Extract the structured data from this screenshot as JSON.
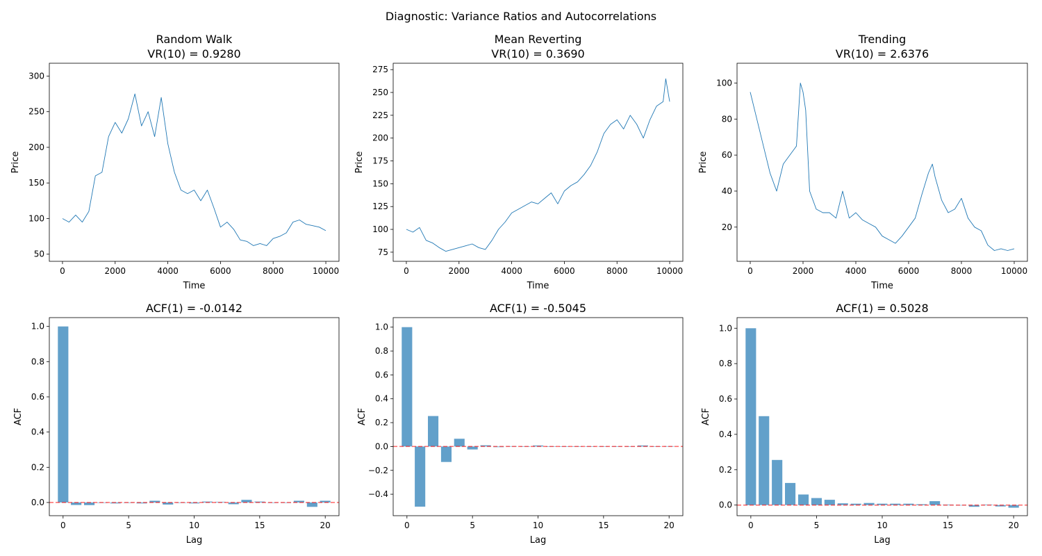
{
  "figure": {
    "suptitle": "Diagnostic: Variance Ratios and Autocorrelations"
  },
  "colors": {
    "series": "#1f77b4",
    "bar": "#1f77b4",
    "bar_opacity": 0.7,
    "zero_line": "#ff0000",
    "axis": "#000000"
  },
  "chart_data": [
    {
      "type": "line",
      "title_line1": "Random Walk",
      "title_line2": "VR(10) = 0.9280",
      "xlabel": "Time",
      "ylabel": "Price",
      "xlim": [
        -500,
        10500
      ],
      "ylim": [
        40,
        318
      ],
      "xticks": [
        0,
        2000,
        4000,
        6000,
        8000,
        10000
      ],
      "yticks": [
        50,
        100,
        150,
        200,
        250,
        300
      ],
      "x": [
        0,
        250,
        500,
        750,
        1000,
        1250,
        1500,
        1750,
        2000,
        2250,
        2500,
        2750,
        3000,
        3250,
        3500,
        3750,
        4000,
        4250,
        4500,
        4750,
        5000,
        5250,
        5500,
        5750,
        6000,
        6250,
        6500,
        6750,
        7000,
        7250,
        7500,
        7750,
        8000,
        8250,
        8500,
        8750,
        9000,
        9250,
        9500,
        9750,
        10000
      ],
      "y": [
        100,
        95,
        105,
        95,
        110,
        160,
        165,
        215,
        235,
        220,
        240,
        275,
        230,
        250,
        215,
        270,
        205,
        165,
        140,
        135,
        140,
        125,
        140,
        115,
        88,
        95,
        85,
        70,
        68,
        62,
        65,
        62,
        72,
        75,
        80,
        95,
        98,
        92,
        90,
        88,
        83
      ]
    },
    {
      "type": "line",
      "title_line1": "Mean Reverting",
      "title_line2": "VR(10) = 0.3690",
      "xlabel": "Time",
      "ylabel": "Price",
      "xlim": [
        -500,
        10500
      ],
      "ylim": [
        65,
        282
      ],
      "xticks": [
        0,
        2000,
        4000,
        6000,
        8000,
        10000
      ],
      "yticks": [
        75,
        100,
        125,
        150,
        175,
        200,
        225,
        250,
        275
      ],
      "x": [
        0,
        250,
        500,
        750,
        1000,
        1250,
        1500,
        1750,
        2000,
        2250,
        2500,
        2750,
        3000,
        3250,
        3500,
        3750,
        4000,
        4250,
        4500,
        4750,
        5000,
        5250,
        5500,
        5750,
        6000,
        6250,
        6500,
        6750,
        7000,
        7250,
        7500,
        7750,
        8000,
        8250,
        8500,
        8750,
        9000,
        9250,
        9500,
        9750,
        9850,
        10000
      ],
      "y": [
        100,
        97,
        102,
        88,
        85,
        80,
        76,
        78,
        80,
        82,
        84,
        80,
        78,
        88,
        100,
        108,
        118,
        122,
        126,
        130,
        128,
        134,
        140,
        128,
        142,
        148,
        152,
        160,
        170,
        185,
        205,
        215,
        220,
        210,
        225,
        215,
        200,
        220,
        235,
        240,
        265,
        240
      ]
    },
    {
      "type": "line",
      "title_line1": "Trending",
      "title_line2": "VR(10) = 2.6376",
      "xlabel": "Time",
      "ylabel": "Price",
      "xlim": [
        -500,
        10500
      ],
      "ylim": [
        1,
        111
      ],
      "xticks": [
        0,
        2000,
        4000,
        6000,
        8000,
        10000
      ],
      "yticks": [
        20,
        40,
        60,
        80,
        100
      ],
      "x": [
        0,
        250,
        500,
        750,
        1000,
        1250,
        1500,
        1750,
        1900,
        2000,
        2100,
        2250,
        2500,
        2750,
        3000,
        3250,
        3500,
        3750,
        4000,
        4250,
        4500,
        4750,
        5000,
        5250,
        5500,
        5750,
        6000,
        6250,
        6500,
        6750,
        6900,
        7000,
        7250,
        7500,
        7750,
        8000,
        8250,
        8500,
        8750,
        9000,
        9250,
        9500,
        9750,
        10000
      ],
      "y": [
        95,
        80,
        65,
        50,
        40,
        55,
        60,
        65,
        100,
        95,
        85,
        40,
        30,
        28,
        28,
        25,
        40,
        25,
        28,
        24,
        22,
        20,
        15,
        13,
        11,
        15,
        20,
        25,
        38,
        50,
        55,
        48,
        35,
        28,
        30,
        36,
        25,
        20,
        18,
        10,
        7,
        8,
        7,
        8
      ]
    },
    {
      "type": "bar",
      "title": "ACF(1) = -0.0142",
      "xlabel": "Lag",
      "ylabel": "ACF",
      "xlim": [
        -1.05,
        21.05
      ],
      "ylim": [
        -0.075,
        1.05
      ],
      "xticks": [
        0,
        5,
        10,
        15,
        20
      ],
      "yticks": [
        0.0,
        0.2,
        0.4,
        0.6,
        0.8,
        1.0
      ],
      "ytick_labels": [
        "0.0",
        "0.2",
        "0.4",
        "0.6",
        "0.8",
        "1.0"
      ],
      "lags": [
        0,
        1,
        2,
        3,
        4,
        5,
        6,
        7,
        8,
        9,
        10,
        11,
        12,
        13,
        14,
        15,
        16,
        17,
        18,
        19,
        20
      ],
      "values": [
        1.0,
        -0.0142,
        -0.015,
        0.0,
        -0.005,
        0.0,
        -0.005,
        0.01,
        -0.012,
        0.0,
        -0.005,
        0.005,
        0.003,
        -0.01,
        0.015,
        0.005,
        0.0,
        0.0,
        0.01,
        -0.025,
        0.01
      ],
      "zero_line": 0
    },
    {
      "type": "bar",
      "title": "ACF(1) = -0.5045",
      "xlabel": "Lag",
      "ylabel": "ACF",
      "xlim": [
        -1.05,
        21.05
      ],
      "ylim": [
        -0.58,
        1.08
      ],
      "xticks": [
        0,
        5,
        10,
        15,
        20
      ],
      "yticks": [
        -0.4,
        -0.2,
        0.0,
        0.2,
        0.4,
        0.6,
        0.8,
        1.0
      ],
      "ytick_labels": [
        "−0.4",
        "−0.2",
        "0.0",
        "0.2",
        "0.4",
        "0.6",
        "0.8",
        "1.0"
      ],
      "lags": [
        0,
        1,
        2,
        3,
        4,
        5,
        6,
        7,
        8,
        9,
        10,
        11,
        12,
        13,
        14,
        15,
        16,
        17,
        18,
        19,
        20
      ],
      "values": [
        1.0,
        -0.5045,
        0.255,
        -0.13,
        0.065,
        -0.025,
        0.01,
        -0.005,
        0.003,
        -0.003,
        0.008,
        -0.003,
        0.0,
        0.0,
        0.0,
        0.0,
        0.0,
        -0.003,
        0.008,
        -0.003,
        0.003
      ],
      "zero_line": 0
    },
    {
      "type": "bar",
      "title": "ACF(1) = 0.5028",
      "xlabel": "Lag",
      "ylabel": "ACF",
      "xlim": [
        -1.05,
        21.05
      ],
      "ylim": [
        -0.06,
        1.06
      ],
      "xticks": [
        0,
        5,
        10,
        15,
        20
      ],
      "yticks": [
        0.0,
        0.2,
        0.4,
        0.6,
        0.8,
        1.0
      ],
      "ytick_labels": [
        "0.0",
        "0.2",
        "0.4",
        "0.6",
        "0.8",
        "1.0"
      ],
      "lags": [
        0,
        1,
        2,
        3,
        4,
        5,
        6,
        7,
        8,
        9,
        10,
        11,
        12,
        13,
        14,
        15,
        16,
        17,
        18,
        19,
        20
      ],
      "values": [
        1.0,
        0.5028,
        0.255,
        0.125,
        0.06,
        0.04,
        0.03,
        0.01,
        0.008,
        0.012,
        0.008,
        0.008,
        0.008,
        0.005,
        0.022,
        0.003,
        0.0,
        -0.01,
        0.003,
        -0.008,
        -0.015
      ],
      "zero_line": 0
    }
  ]
}
